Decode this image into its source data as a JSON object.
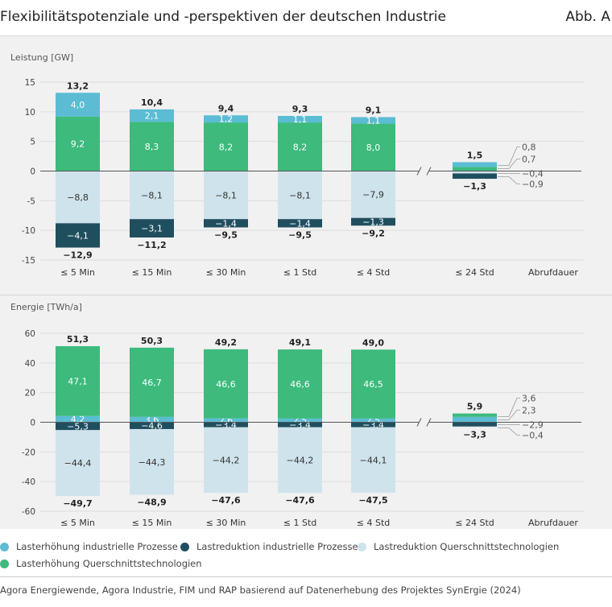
{
  "header": {
    "title": "Flexibilitätspotenziale und -perspektiven der deutschen Industrie",
    "figure_no": "Abb. A"
  },
  "colors": {
    "lh_ind": "#5bbcd4",
    "lh_qst": "#3dba7c",
    "lr_ind": "#1f4e5f",
    "lr_qst": "#cfe3ec"
  },
  "legend": [
    {
      "key": "lh_ind",
      "label": "Lasterhöhung industrielle Prozesse"
    },
    {
      "key": "lr_ind",
      "label": "Lastreduktion industrielle Prozesse"
    },
    {
      "key": "lr_qst",
      "label": "Lastreduktion Querschnittstechnologien"
    },
    {
      "key": "lh_qst",
      "label": "Lasterhöhung Querschnittstechnologien"
    }
  ],
  "source": "Agora Energiewende, Agora Industrie, FIM und RAP basierend auf Datenerhebung des Projektes SynErgie (2024)",
  "chart_data": [
    {
      "type": "bar",
      "stacked": true,
      "ylabel": "Leistung [GW]",
      "xlabel": "Abrufdauer",
      "ylim": [
        -15,
        15
      ],
      "yticks": [
        "15",
        "10",
        "5",
        "0",
        "-5",
        "-10",
        "-15"
      ],
      "categories": [
        "≤ 5 Min",
        "≤ 15 Min",
        "≤ 30 Min",
        "≤ 1 Std",
        "≤ 4 Std",
        "≤ 24 Std"
      ],
      "series": [
        {
          "name": "Lasterhöhung Querschnittstechnologien",
          "key": "lh_qst",
          "values": [
            9.2,
            8.3,
            8.2,
            8.2,
            8.0,
            0.7
          ],
          "labels": [
            "9,2",
            "8,3",
            "8,2",
            "8,2",
            "8,0",
            ""
          ]
        },
        {
          "name": "Lasterhöhung industrielle Prozesse",
          "key": "lh_ind",
          "values": [
            4.0,
            2.1,
            1.2,
            1.1,
            1.1,
            0.8
          ],
          "labels": [
            "4,0",
            "2,1",
            "1,2",
            "1,1",
            "1,1",
            ""
          ]
        },
        {
          "name": "Lastreduktion Querschnittstechnologien",
          "key": "lr_qst",
          "values": [
            -8.8,
            -8.1,
            -8.1,
            -8.1,
            -7.9,
            -0.4
          ],
          "labels": [
            "−8,8",
            "−8,1",
            "−8,1",
            "−8,1",
            "−7,9",
            ""
          ]
        },
        {
          "name": "Lastreduktion industrielle Prozesse",
          "key": "lr_ind",
          "values": [
            -4.1,
            -3.1,
            -1.4,
            -1.4,
            -1.3,
            -0.9
          ],
          "labels": [
            "−4,1",
            "−3,1",
            "−1,4",
            "−1,4",
            "−1,3",
            ""
          ]
        }
      ],
      "totals_pos": [
        "13,2",
        "10,4",
        "9,4",
        "9,3",
        "9,1",
        "1,5"
      ],
      "totals_neg": [
        "−12,9",
        "−11,2",
        "−9,5",
        "−9,5",
        "−9,2",
        "−1,3"
      ],
      "side_labels": [
        "0,8",
        "0,7",
        "−0,4",
        "−0,9"
      ]
    },
    {
      "type": "bar",
      "stacked": true,
      "ylabel": "Energie [TWh/a]",
      "xlabel": "Abrufdauer",
      "ylim": [
        -60,
        60
      ],
      "yticks": [
        "60",
        "40",
        "20",
        "0",
        "-20",
        "-40",
        "-60"
      ],
      "categories": [
        "≤ 5 Min",
        "≤ 15 Min",
        "≤ 30 Min",
        "≤ 1 Std",
        "≤ 4 Std",
        "≤ 24 Std"
      ],
      "series": [
        {
          "name": "Lasterhöhung industrielle Prozesse",
          "key": "lh_ind",
          "values": [
            4.2,
            3.6,
            2.6,
            2.5,
            2.5,
            3.6
          ],
          "labels": [
            "4,2",
            "3,6",
            "2,6",
            "2,5",
            "2,5",
            ""
          ]
        },
        {
          "name": "Lasterhöhung Querschnittstechnologien",
          "key": "lh_qst",
          "values": [
            47.1,
            46.7,
            46.6,
            46.6,
            46.5,
            2.3
          ],
          "labels": [
            "47,1",
            "46,7",
            "46,6",
            "46,6",
            "46,5",
            ""
          ]
        },
        {
          "name": "Lastreduktion industrielle Prozesse",
          "key": "lr_ind",
          "values": [
            -5.3,
            -4.6,
            -3.4,
            -3.4,
            -3.4,
            -2.9
          ],
          "labels": [
            "−5,3",
            "−4,6",
            "−3,4",
            "−3,4",
            "−3,4",
            ""
          ]
        },
        {
          "name": "Lastreduktion Querschnittstechnologien",
          "key": "lr_qst",
          "values": [
            -44.4,
            -44.3,
            -44.2,
            -44.2,
            -44.1,
            -0.4
          ],
          "labels": [
            "−44,4",
            "−44,3",
            "−44,2",
            "−44,2",
            "−44,1",
            ""
          ]
        }
      ],
      "totals_pos": [
        "51,3",
        "50,3",
        "49,2",
        "49,1",
        "49,0",
        "5,9"
      ],
      "totals_neg": [
        "−49,7",
        "−48,9",
        "−47,6",
        "−47,6",
        "−47,5",
        "−3,3"
      ],
      "side_labels": [
        "3,6",
        "2,3",
        "−2,9",
        "−0,4"
      ]
    }
  ]
}
